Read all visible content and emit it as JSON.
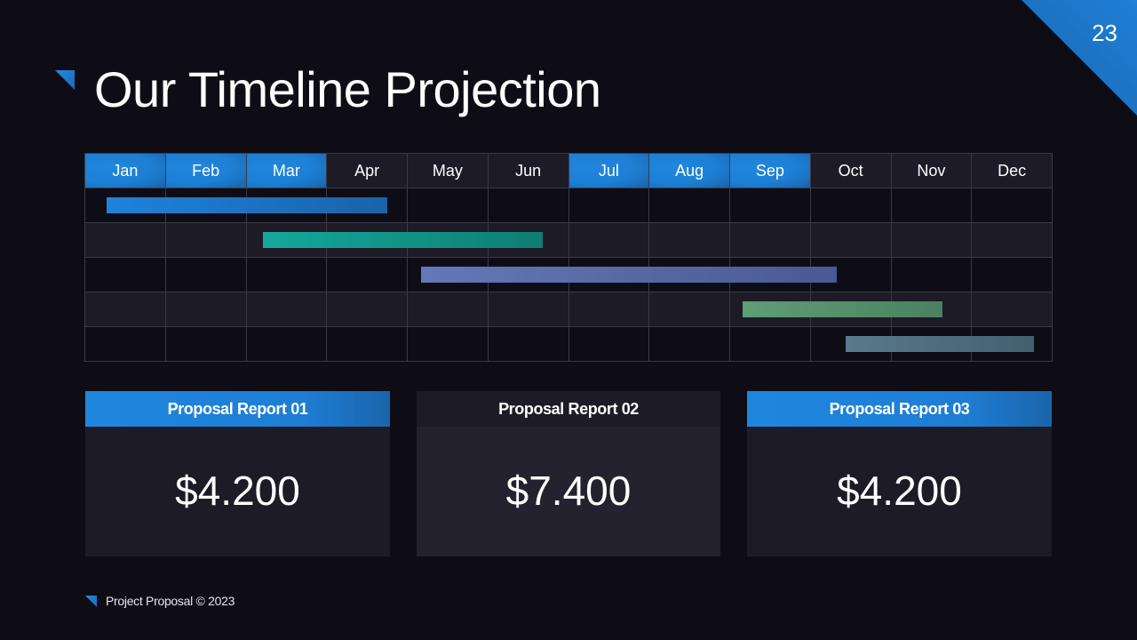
{
  "slide": {
    "page_number": "23",
    "title": "Our Timeline Projection",
    "footer": "Project Proposal © 2023"
  },
  "colors": {
    "background": "#0e0d16",
    "accent_blue": "#1f80d6",
    "row_alt": "#1c1b26",
    "grid_line": "#3a3a46"
  },
  "timeline": {
    "months": [
      "Jan",
      "Feb",
      "Mar",
      "Apr",
      "May",
      "Jun",
      "Jul",
      "Aug",
      "Sep",
      "Oct",
      "Nov",
      "Dec"
    ],
    "highlighted_months": [
      "Jan",
      "Feb",
      "Mar",
      "Jul",
      "Aug",
      "Sep"
    ]
  },
  "chart_data": {
    "type": "gantt",
    "title": "Our Timeline Projection",
    "categories": [
      "Jan",
      "Feb",
      "Mar",
      "Apr",
      "May",
      "Jun",
      "Jul",
      "Aug",
      "Sep",
      "Oct",
      "Nov",
      "Dec"
    ],
    "grid": true,
    "tasks": [
      {
        "row": 1,
        "start_month": 1.27,
        "end_month": 4.75,
        "color_start": "#1f82dc",
        "color_end": "#1a63a8"
      },
      {
        "row": 2,
        "start_month": 3.21,
        "end_month": 6.68,
        "color_start": "#14a89b",
        "color_end": "#0f7d73"
      },
      {
        "row": 3,
        "start_month": 5.17,
        "end_month": 10.33,
        "color_start": "#6478b8",
        "color_end": "#495a92"
      },
      {
        "row": 4,
        "start_month": 9.16,
        "end_month": 11.64,
        "color_start": "#5e9e76",
        "color_end": "#4b8060"
      },
      {
        "row": 5,
        "start_month": 10.44,
        "end_month": 12.77,
        "color_start": "#587a8c",
        "color_end": "#43606f"
      }
    ]
  },
  "cards": [
    {
      "label": "Proposal Report 01",
      "value": "$4.200",
      "highlighted": true
    },
    {
      "label": "Proposal Report 02",
      "value": "$7.400",
      "highlighted": false
    },
    {
      "label": "Proposal Report 03",
      "value": "$4.200",
      "highlighted": true
    }
  ]
}
